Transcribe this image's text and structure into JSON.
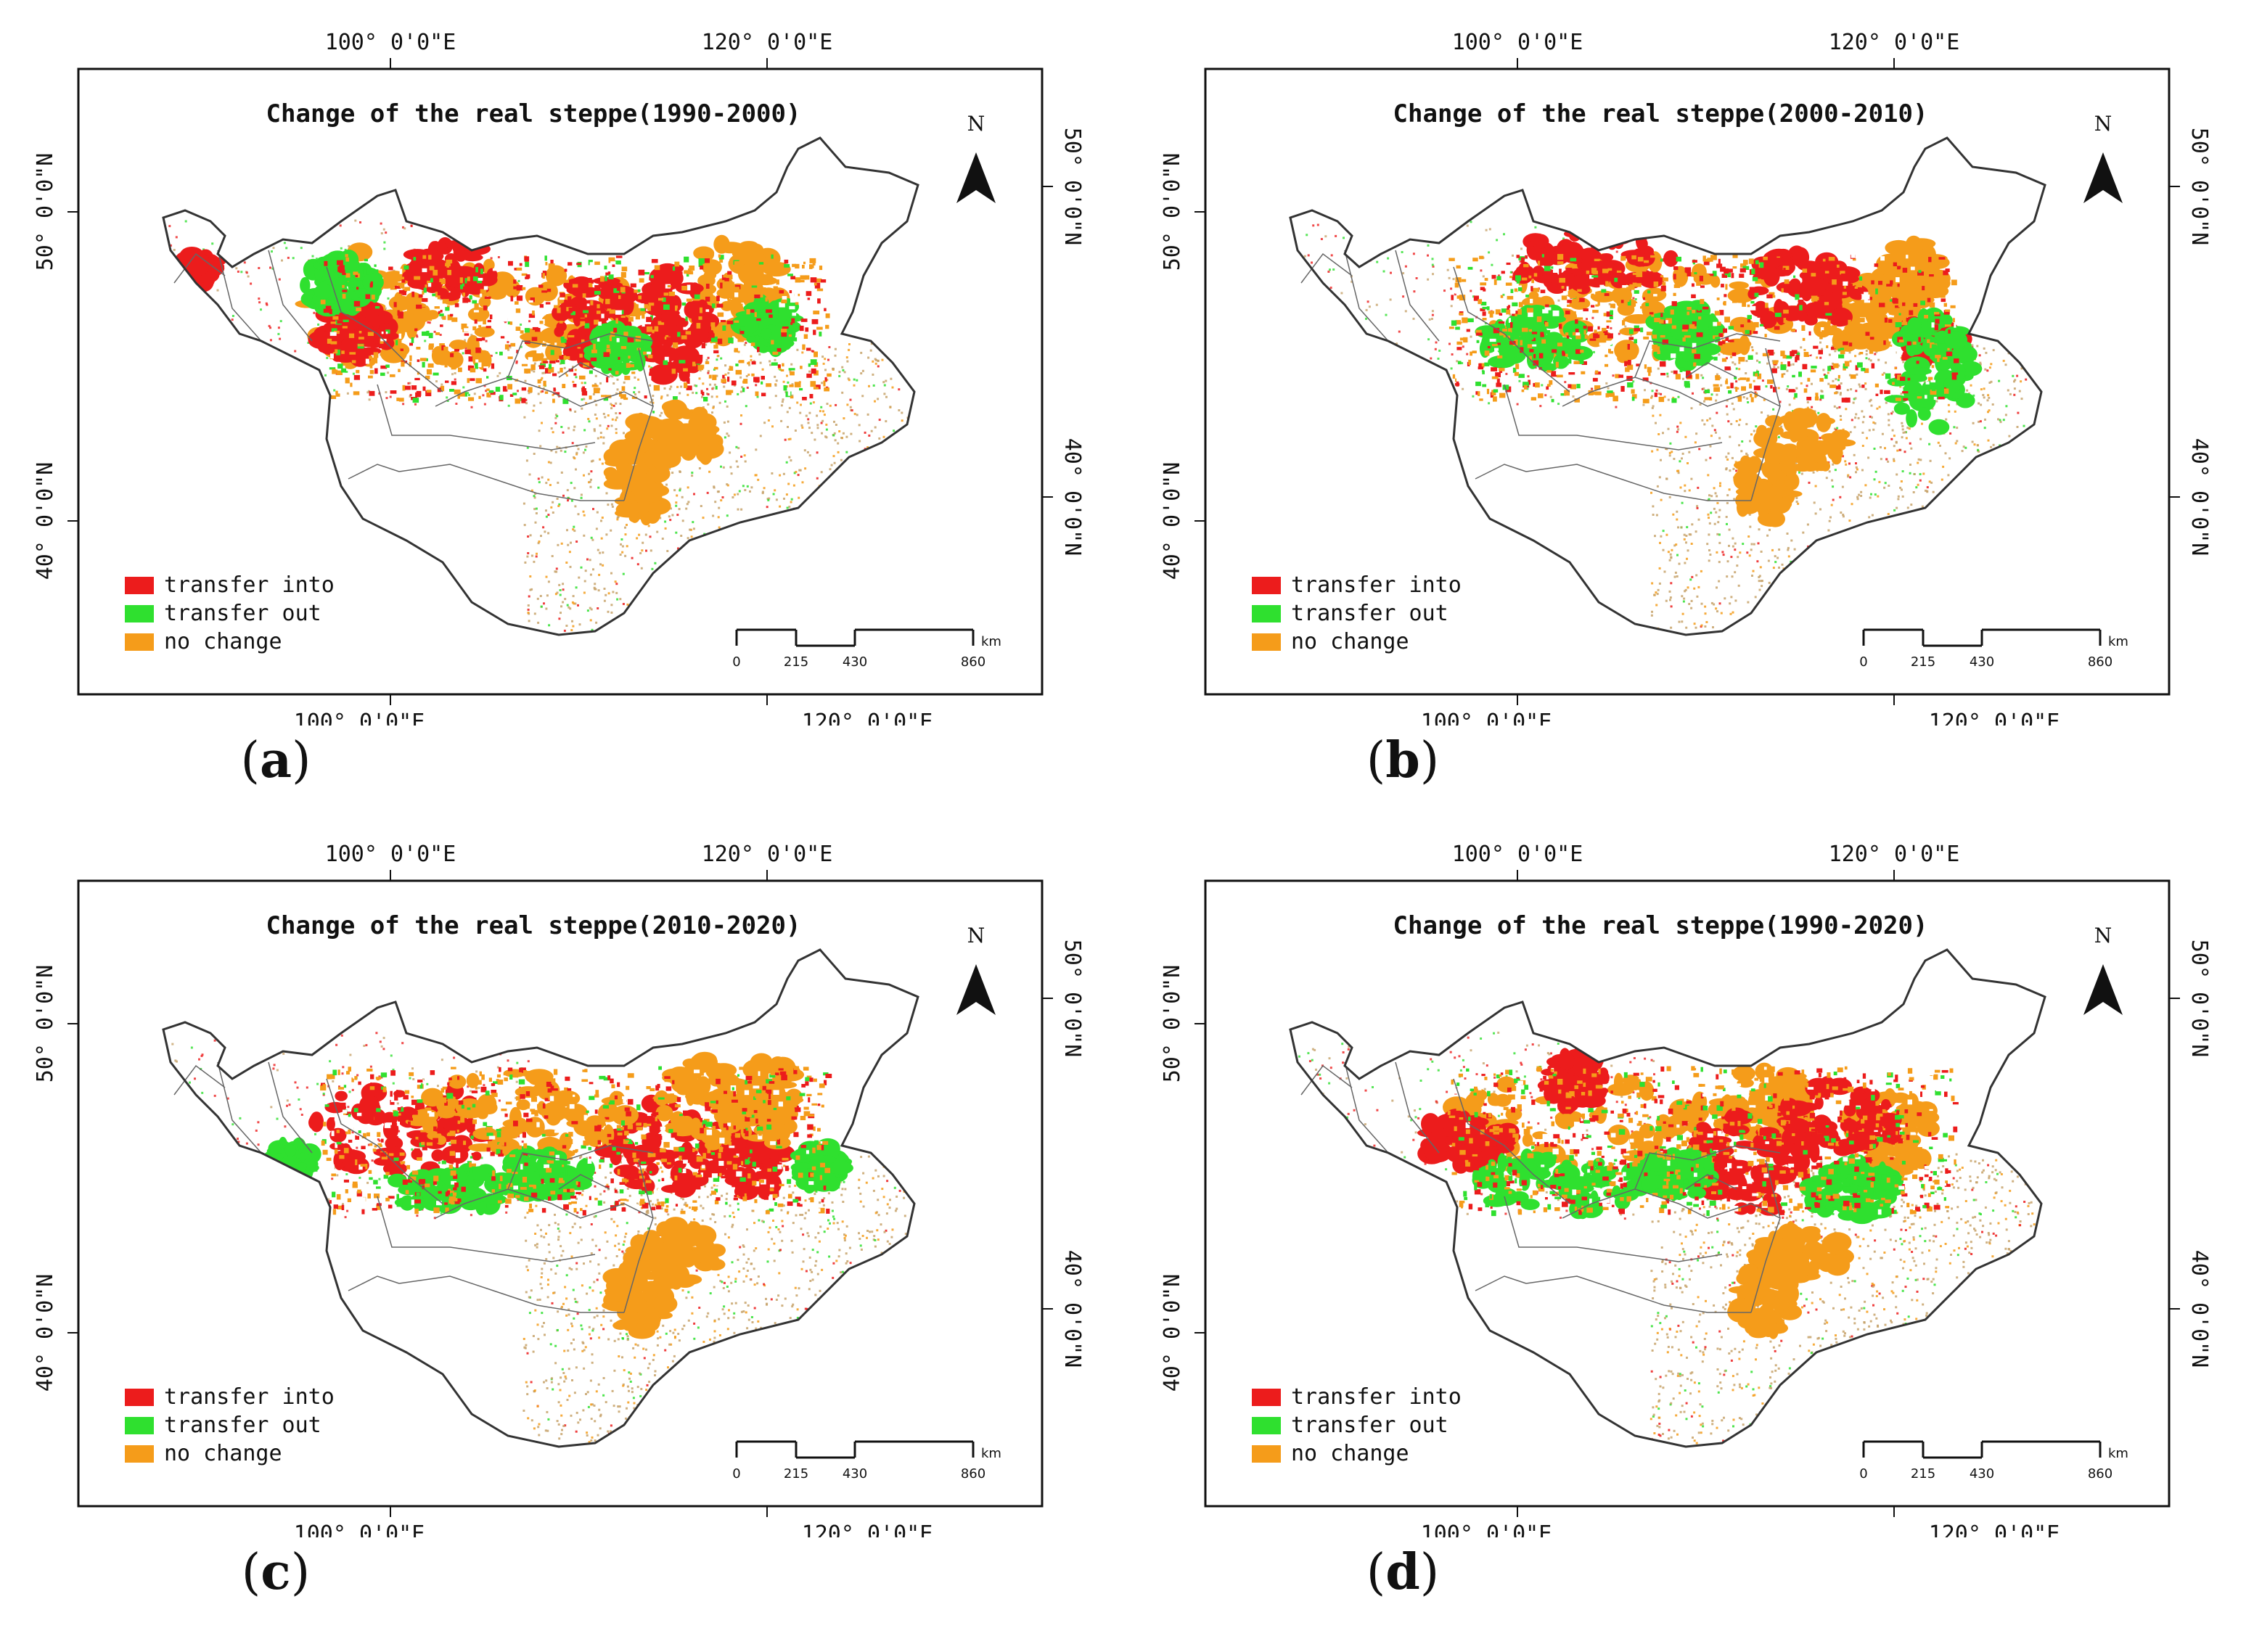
{
  "colors": {
    "transfer_into": "#ec1c1c",
    "transfer_out": "#2fe02f",
    "no_change": "#f59c1a",
    "sparse": "#c7a26a",
    "boundary": "#333333"
  },
  "shared": {
    "lon_top_left": "100° 0'0\"E",
    "lon_top_right": "120° 0'0\"E",
    "lon_bottom_left": "100° 0'0\"E",
    "lon_bottom_right": "120° 0'0\"E",
    "lat_upper": "50° 0'0\"N",
    "lat_lower": "40° 0'0\"N",
    "north_label": "N",
    "legend": [
      {
        "key": "transfer_into",
        "label": "transfer into"
      },
      {
        "key": "transfer_out",
        "label": "transfer out"
      },
      {
        "key": "no_change",
        "label": "no change"
      }
    ],
    "scale_unit": "km",
    "scale_ticks": [
      "0",
      "215",
      "430",
      "860"
    ]
  },
  "panels": [
    {
      "id": "a",
      "title": "Change of the real steppe(1990-2000)",
      "caption_open": "(",
      "caption_letter": "a",
      "caption_close": ")"
    },
    {
      "id": "b",
      "title": "Change of the real steppe(2000-2010)",
      "caption_open": "(",
      "caption_letter": "b",
      "caption_close": ")"
    },
    {
      "id": "c",
      "title": "Change of the real steppe(2010-2020)",
      "caption_open": "(",
      "caption_letter": "c",
      "caption_close": ")"
    },
    {
      "id": "d",
      "title": "Change of the real steppe(1990-2020)",
      "caption_open": "(",
      "caption_letter": "d",
      "caption_close": ")"
    }
  ]
}
